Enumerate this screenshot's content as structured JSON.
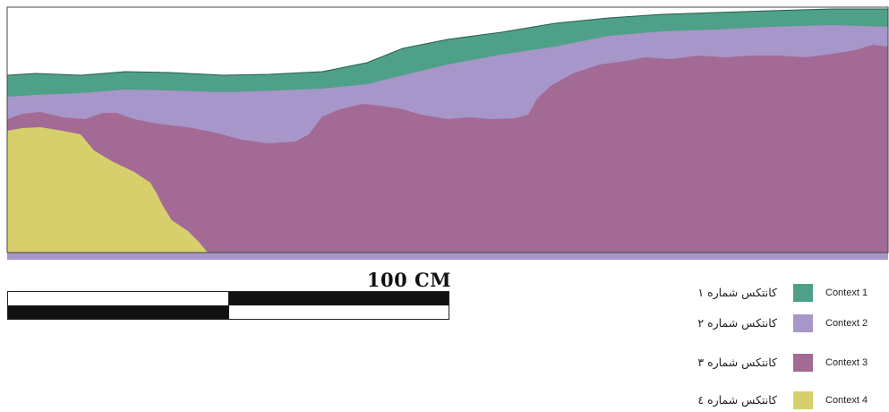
{
  "scale": {
    "label": "100 CM"
  },
  "legend": [
    {
      "persian": "کانتکس شماره ۱",
      "english": "Context 1",
      "color": "#4fa088"
    },
    {
      "persian": "کانتکس شماره ۲",
      "english": "Context 2",
      "color": "#a796c9"
    },
    {
      "persian": "کانتکس شماره ۳",
      "english": "Context 3",
      "color": "#a36a95"
    },
    {
      "persian": "کانتکس شماره ٤",
      "english": "Context 4",
      "color": "#d7cf6c"
    }
  ]
}
